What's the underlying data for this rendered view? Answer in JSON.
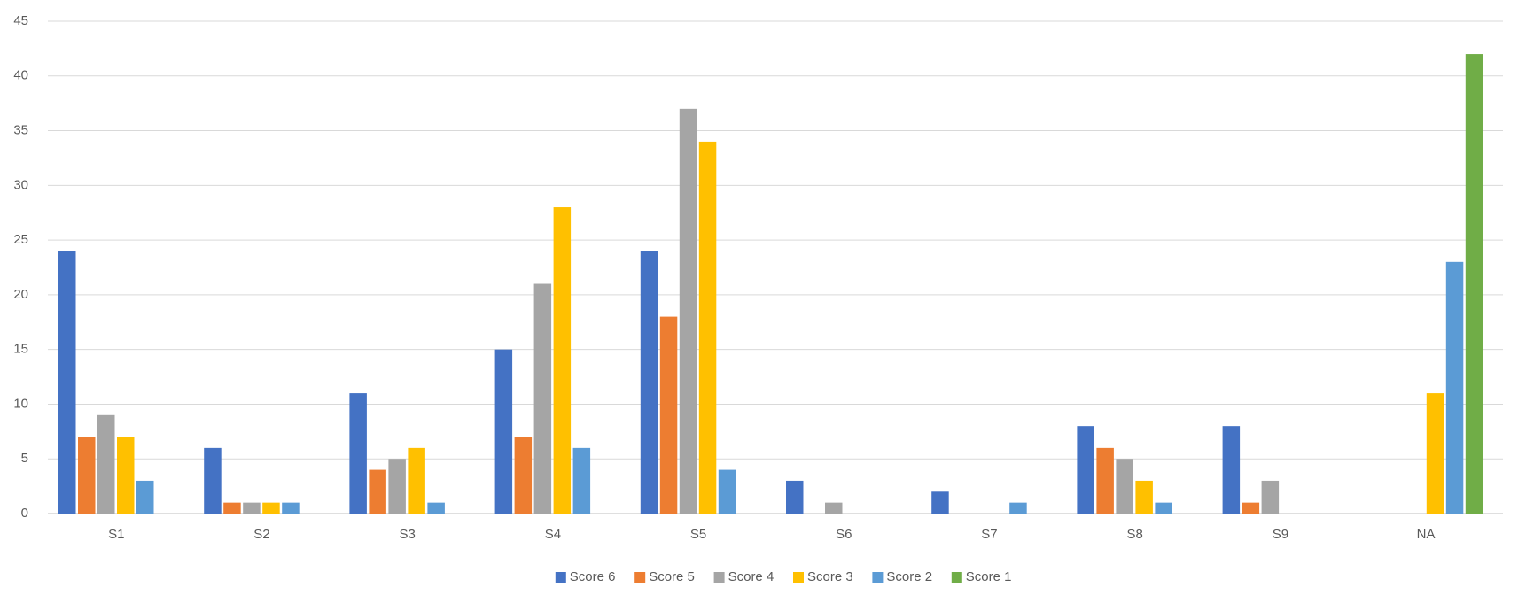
{
  "chart_data": {
    "type": "bar",
    "categories": [
      "S1",
      "S2",
      "S3",
      "S4",
      "S5",
      "S6",
      "S7",
      "S8",
      "S9",
      "NA"
    ],
    "series": [
      {
        "name": "Score 6",
        "color": "#4472c4",
        "values": [
          24,
          6,
          11,
          15,
          24,
          3,
          2,
          8,
          8,
          0
        ]
      },
      {
        "name": "Score 5",
        "color": "#ed7d31",
        "values": [
          7,
          1,
          4,
          7,
          18,
          0,
          0,
          6,
          1,
          0
        ]
      },
      {
        "name": "Score 4",
        "color": "#a5a5a5",
        "values": [
          9,
          1,
          5,
          21,
          37,
          1,
          0,
          5,
          3,
          0
        ]
      },
      {
        "name": "Score 3",
        "color": "#ffc000",
        "values": [
          7,
          1,
          6,
          28,
          34,
          0,
          0,
          3,
          0,
          11
        ]
      },
      {
        "name": "Score 2",
        "color": "#5b9bd5",
        "values": [
          3,
          1,
          1,
          6,
          4,
          0,
          1,
          1,
          0,
          23
        ]
      },
      {
        "name": "Score 1",
        "color": "#70ad47",
        "values": [
          0,
          0,
          0,
          0,
          0,
          0,
          0,
          0,
          0,
          42
        ]
      }
    ],
    "ylim": [
      0,
      45
    ],
    "yticks": [
      0,
      5,
      10,
      15,
      20,
      25,
      30,
      35,
      40,
      45
    ],
    "grid": true,
    "legend": "bottom"
  }
}
